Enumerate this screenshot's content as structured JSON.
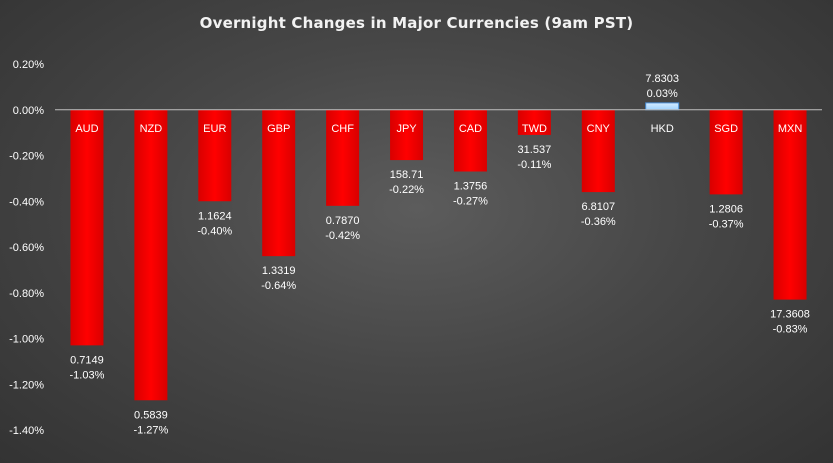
{
  "colors": {
    "negative_bar": "#ff0000",
    "positive_bar": "#9fd3ff",
    "axis_line": "#bfbfbf",
    "text": "#ffffff"
  },
  "chart_data": {
    "type": "bar",
    "title": "Overnight Changes in Major Currencies (9am PST)",
    "xlabel": "",
    "ylabel": "",
    "ylim": [
      -1.4,
      0.2
    ],
    "yticks": [
      0.2,
      0.0,
      -0.2,
      -0.4,
      -0.6,
      -0.8,
      -1.0,
      -1.2,
      -1.4
    ],
    "ytick_labels": [
      "0.20%",
      "0.00%",
      "-0.20%",
      "-0.40%",
      "-0.60%",
      "-0.80%",
      "-1.00%",
      "-1.20%",
      "-1.40%"
    ],
    "grid": false,
    "legend": "none",
    "categories": [
      "AUD",
      "NZD",
      "EUR",
      "GBP",
      "CHF",
      "JPY",
      "CAD",
      "TWD",
      "CNY",
      "HKD",
      "SGD",
      "MXN"
    ],
    "values": [
      -1.03,
      -1.27,
      -0.4,
      -0.64,
      -0.42,
      -0.22,
      -0.27,
      -0.11,
      -0.36,
      0.03,
      -0.37,
      -0.83
    ],
    "rates": [
      "0.7149",
      "0.5839",
      "1.1624",
      "1.3319",
      "0.7870",
      "158.71",
      "1.3756",
      "31.537",
      "6.8107",
      "7.8303",
      "1.2806",
      "17.3608"
    ],
    "pct_labels": [
      "-1.03%",
      "-1.27%",
      "-0.40%",
      "-0.64%",
      "-0.42%",
      "-0.22%",
      "-0.27%",
      "-0.11%",
      "-0.36%",
      "0.03%",
      "-0.37%",
      "-0.83%"
    ]
  }
}
